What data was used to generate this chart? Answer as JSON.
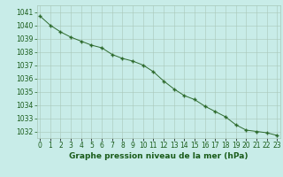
{
  "hours": [
    0,
    1,
    2,
    3,
    4,
    5,
    6,
    7,
    8,
    9,
    10,
    11,
    12,
    13,
    14,
    15,
    16,
    17,
    18,
    19,
    20,
    21,
    22,
    23
  ],
  "pressure": [
    1040.7,
    1040.0,
    1039.5,
    1039.1,
    1038.8,
    1038.5,
    1038.3,
    1037.8,
    1037.5,
    1037.3,
    1037.0,
    1036.5,
    1035.8,
    1035.2,
    1034.7,
    1034.4,
    1033.9,
    1033.5,
    1033.1,
    1032.5,
    1032.1,
    1032.0,
    1031.9,
    1031.7
  ],
  "line_color": "#2d6a2d",
  "marker": "+",
  "marker_color": "#2d6a2d",
  "background_color": "#c8ece8",
  "grid_color": "#a8c8b8",
  "text_color": "#1a5c1a",
  "ylim": [
    1031.5,
    1041.5
  ],
  "yticks": [
    1032,
    1033,
    1034,
    1035,
    1036,
    1037,
    1038,
    1039,
    1040,
    1041
  ],
  "xlabel": "Graphe pression niveau de la mer (hPa)",
  "tick_fontsize": 5.5,
  "xlabel_fontsize": 6.5
}
